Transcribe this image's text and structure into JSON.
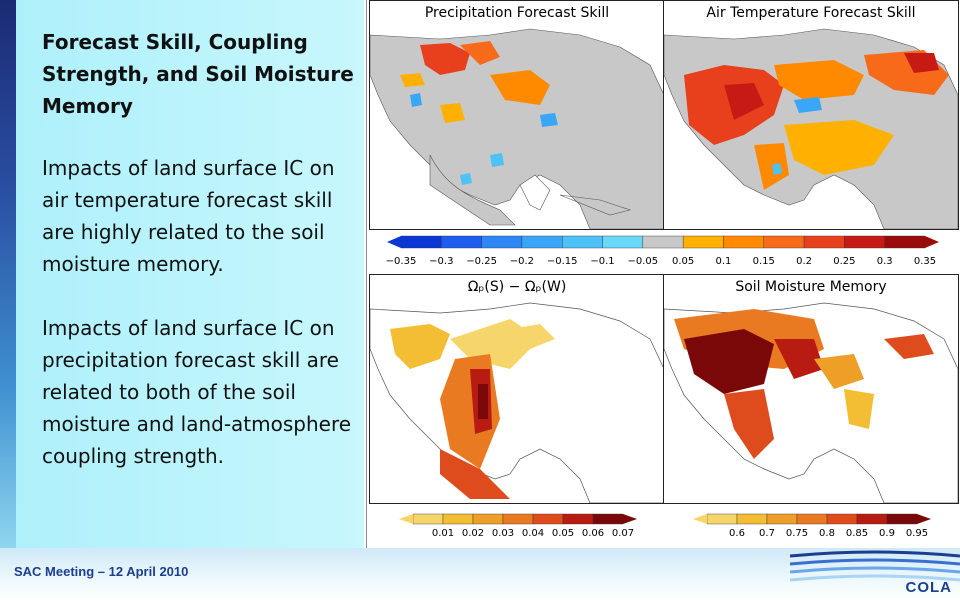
{
  "slide": {
    "title": "Forecast Skill, Coupling Strength, and Soil Moisture Memory",
    "paragraph_1": "Impacts of land surface IC on air temperature forecast skill are highly related to the soil moisture memory.",
    "paragraph_2": "Impacts of land surface IC on precipitation forecast skill are related to both of the soil moisture and land-atmosphere coupling strength."
  },
  "figure": {
    "panels": [
      {
        "title": "Precipitation Forecast Skill"
      },
      {
        "title": "Air Temperature Forecast Skill"
      },
      {
        "title": "Ωₚ(S) − Ωₚ(W)"
      },
      {
        "title": "Soil Moisture Memory"
      }
    ],
    "skill_colorbar": {
      "labels": [
        "−0.35",
        "−0.3",
        "−0.25",
        "−0.2",
        "−0.15",
        "−0.1",
        "−0.05",
        "0.05",
        "0.1",
        "0.15",
        "0.2",
        "0.25",
        "0.3",
        "0.35"
      ],
      "colors": [
        "#0a37d6",
        "#1f5df0",
        "#2f86f5",
        "#3aa6f7",
        "#4cc2f6",
        "#6ad8f8",
        "#c8c8c8",
        "#ffb000",
        "#ff8a00",
        "#f66a1a",
        "#e8401d",
        "#c81a14",
        "#9a0b0b"
      ]
    },
    "coupling_colorbar": {
      "labels": [
        "0.01",
        "0.02",
        "0.03",
        "0.04",
        "0.05",
        "0.06",
        "0.07"
      ],
      "colors": [
        "#f6d66a",
        "#f3be33",
        "#ee9f27",
        "#e97a22",
        "#de4b1c",
        "#b71b12",
        "#7a0808"
      ]
    },
    "memory_colorbar": {
      "labels": [
        "0.6",
        "0.7",
        "0.75",
        "0.8",
        "0.85",
        "0.9",
        "0.95"
      ],
      "colors": [
        "#f6d66a",
        "#f3be33",
        "#ee9f27",
        "#e97a22",
        "#de4b1c",
        "#b71b12",
        "#7a0808"
      ]
    }
  },
  "footer": {
    "meeting": "SAC Meeting – 12 April 2010",
    "logo": "COLA"
  }
}
